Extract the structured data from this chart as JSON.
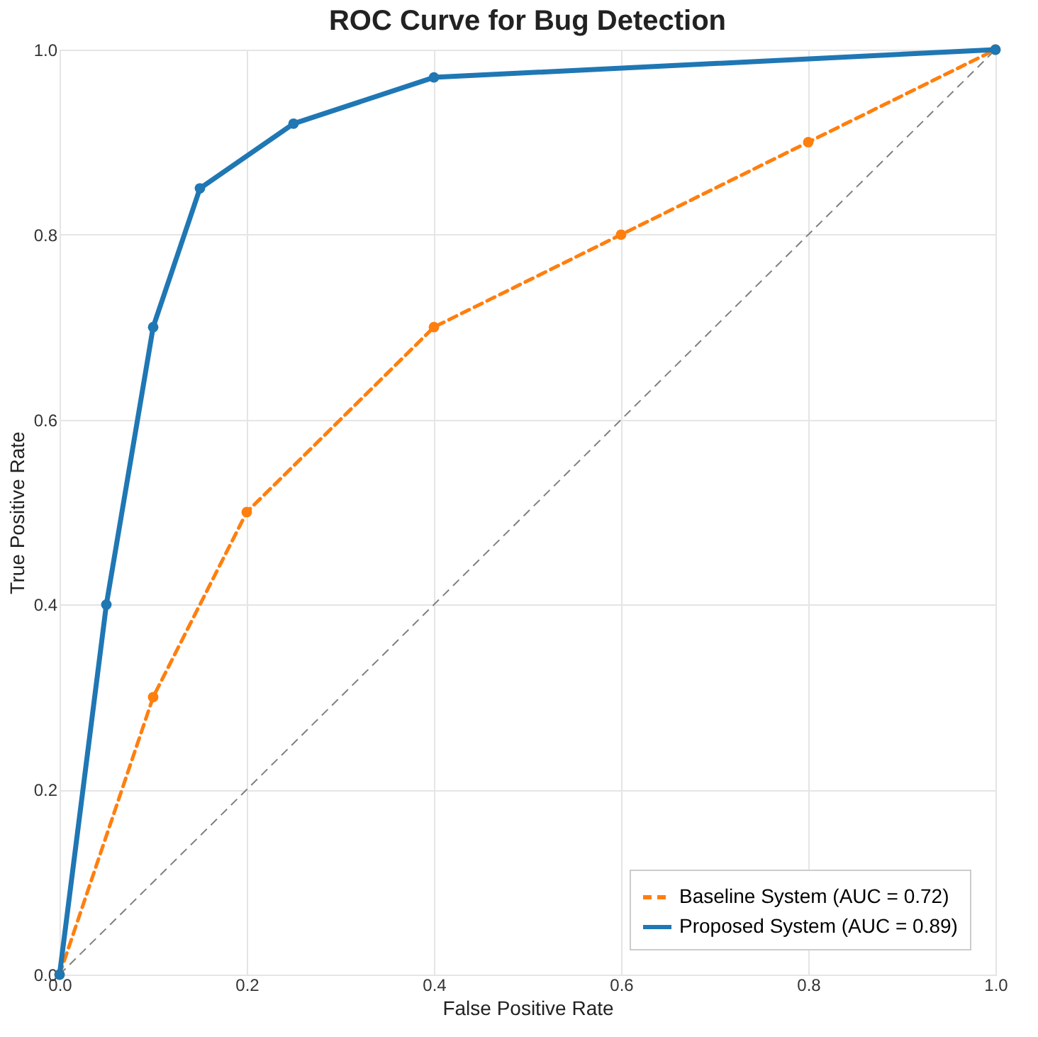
{
  "chart_data": {
    "type": "line",
    "title": "ROC Curve for Bug Detection",
    "xlabel": "False Positive Rate",
    "ylabel": "True Positive Rate",
    "xlim": [
      0,
      1
    ],
    "ylim": [
      0,
      1
    ],
    "xticks": [
      {
        "value": 0,
        "label": "0.0"
      },
      {
        "value": 0.2,
        "label": "0.2"
      },
      {
        "value": 0.4,
        "label": "0.4"
      },
      {
        "value": 0.6,
        "label": "0.6"
      },
      {
        "value": 0.8,
        "label": "0.8"
      },
      {
        "value": 1,
        "label": "1.0"
      }
    ],
    "yticks": [
      {
        "value": 0,
        "label": "0.0"
      },
      {
        "value": 0.2,
        "label": "0.2"
      },
      {
        "value": 0.4,
        "label": "0.4"
      },
      {
        "value": 0.6,
        "label": "0.6"
      },
      {
        "value": 0.8,
        "label": "0.8"
      },
      {
        "value": 1,
        "label": "1.0"
      }
    ],
    "grid": true,
    "legend": "bottom right",
    "series": [
      {
        "color": "#808080",
        "x": [
          0,
          1
        ],
        "values": [
          0,
          1
        ],
        "line_style": "dashed",
        "marker": "none"
      },
      {
        "name": "Baseline System (AUC = 0.72)",
        "color": "#ff7f0e",
        "x": [
          0,
          0.1,
          0.2,
          0.4,
          0.6,
          0.8,
          1
        ],
        "values": [
          0,
          0.3,
          0.5,
          0.7,
          0.8,
          0.9,
          1
        ],
        "line_style": "dashed",
        "marker": "circle"
      },
      {
        "name": "Proposed System (AUC = 0.89)",
        "color": "#1f77b4",
        "x": [
          0,
          0.05,
          0.1,
          0.15,
          0.25,
          0.4,
          1
        ],
        "values": [
          0,
          0.4,
          0.7,
          0.85,
          0.92,
          0.97,
          1
        ],
        "line_style": "solid",
        "marker": "circle"
      }
    ]
  }
}
